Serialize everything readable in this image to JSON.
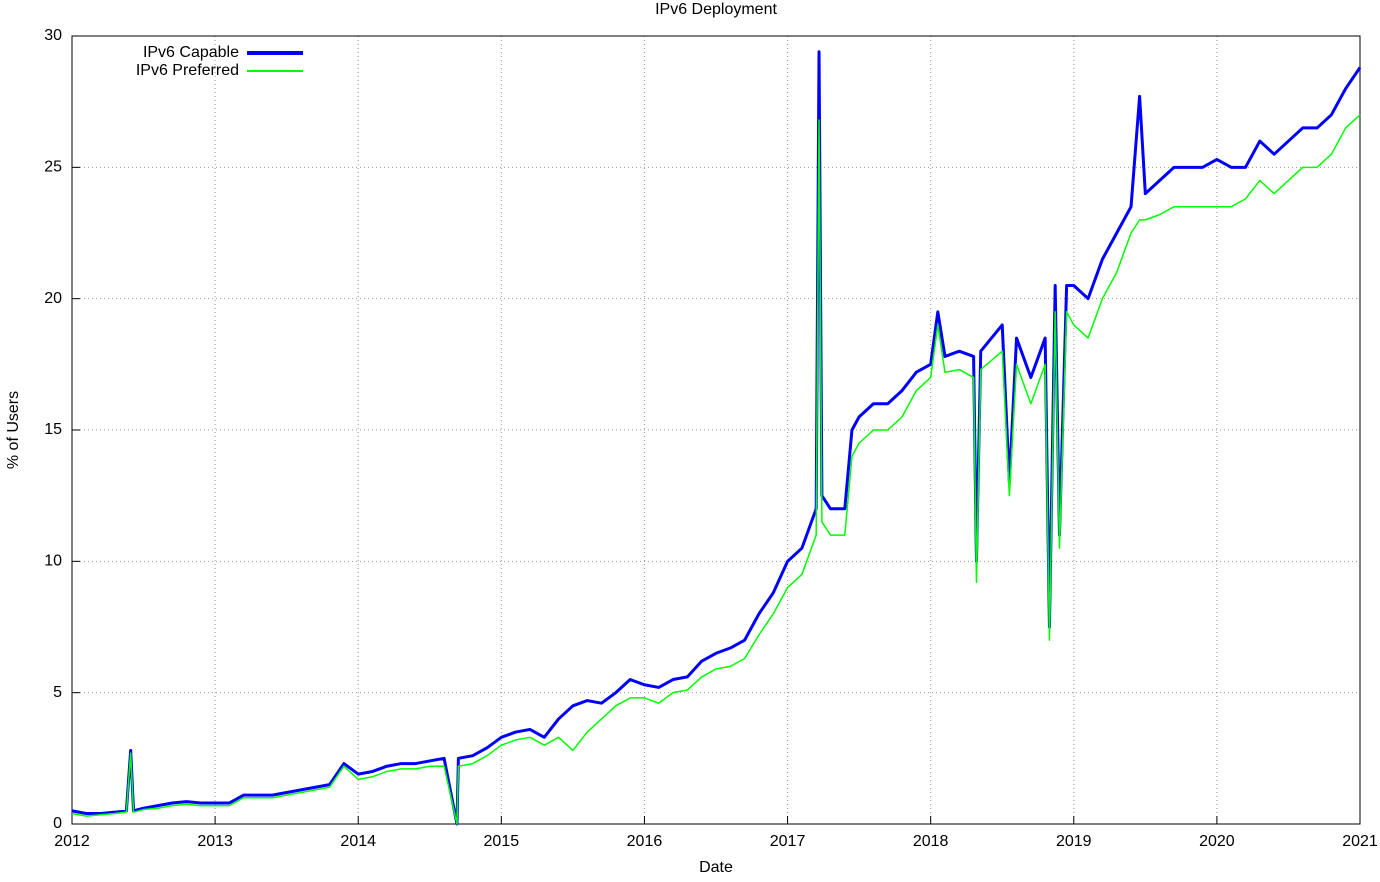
{
  "chart_data": {
    "type": "line",
    "title": "IPv6 Deployment",
    "x_label": "Date",
    "y_label": "% of Users",
    "x": [
      2012.0,
      2012.1,
      2012.2,
      2012.3,
      2012.38,
      2012.41,
      2012.43,
      2012.5,
      2012.6,
      2012.7,
      2012.8,
      2012.9,
      2013.0,
      2013.1,
      2013.2,
      2013.3,
      2013.4,
      2013.5,
      2013.6,
      2013.7,
      2013.8,
      2013.9,
      2014.0,
      2014.1,
      2014.2,
      2014.3,
      2014.4,
      2014.5,
      2014.6,
      2014.69,
      2014.7,
      2014.8,
      2014.9,
      2015.0,
      2015.1,
      2015.2,
      2015.3,
      2015.4,
      2015.5,
      2015.6,
      2015.7,
      2015.8,
      2015.9,
      2016.0,
      2016.1,
      2016.2,
      2016.3,
      2016.4,
      2016.5,
      2016.6,
      2016.7,
      2016.8,
      2016.9,
      2017.0,
      2017.1,
      2017.2,
      2017.22,
      2017.24,
      2017.3,
      2017.4,
      2017.45,
      2017.5,
      2017.6,
      2017.7,
      2017.8,
      2017.9,
      2018.0,
      2018.05,
      2018.1,
      2018.2,
      2018.3,
      2018.32,
      2018.35,
      2018.5,
      2018.55,
      2018.6,
      2018.7,
      2018.8,
      2018.83,
      2018.87,
      2018.9,
      2018.95,
      2019.0,
      2019.1,
      2019.2,
      2019.3,
      2019.4,
      2019.46,
      2019.5,
      2019.6,
      2019.7,
      2019.8,
      2019.9,
      2020.0,
      2020.1,
      2020.2,
      2020.3,
      2020.4,
      2020.5,
      2020.6,
      2020.7,
      2020.8,
      2020.9,
      2021.0
    ],
    "series": [
      {
        "name": "IPv6 Capable",
        "color": "#0000ff",
        "values": [
          0.5,
          0.4,
          0.4,
          0.45,
          0.5,
          2.8,
          0.5,
          0.6,
          0.7,
          0.8,
          0.85,
          0.8,
          0.8,
          0.8,
          1.1,
          1.1,
          1.1,
          1.2,
          1.3,
          1.4,
          1.5,
          2.3,
          1.9,
          2.0,
          2.2,
          2.3,
          2.3,
          2.4,
          2.5,
          0,
          2.5,
          2.6,
          2.9,
          3.3,
          3.5,
          3.6,
          3.3,
          4.0,
          4.5,
          4.7,
          4.6,
          5.0,
          5.5,
          5.3,
          5.2,
          5.5,
          5.6,
          6.2,
          6.5,
          6.7,
          7.0,
          8.0,
          8.8,
          10.0,
          10.5,
          12.0,
          29.4,
          12.5,
          12.0,
          12.0,
          15.0,
          15.5,
          16.0,
          16.0,
          16.5,
          17.2,
          17.5,
          19.5,
          17.8,
          18.0,
          17.8,
          10.0,
          18.0,
          19.0,
          13.0,
          18.5,
          17.0,
          18.5,
          7.5,
          20.5,
          11.0,
          20.5,
          20.5,
          20.0,
          21.5,
          22.5,
          23.5,
          27.7,
          24.0,
          24.5,
          25.0,
          25.0,
          25.0,
          25.3,
          25.0,
          25.0,
          26.0,
          25.5,
          26.0,
          26.5,
          26.5,
          27.0,
          28.0,
          28.8
        ]
      },
      {
        "name": "IPv6 Preferred",
        "color": "#00ff00",
        "values": [
          0.4,
          0.3,
          0.35,
          0.4,
          0.45,
          2.7,
          0.45,
          0.55,
          0.6,
          0.7,
          0.75,
          0.7,
          0.7,
          0.7,
          1.0,
          1.0,
          1.0,
          1.1,
          1.2,
          1.3,
          1.4,
          2.2,
          1.7,
          1.8,
          2.0,
          2.1,
          2.1,
          2.2,
          2.2,
          0,
          2.2,
          2.3,
          2.6,
          3.0,
          3.2,
          3.3,
          3.0,
          3.3,
          2.8,
          3.5,
          4.0,
          4.5,
          4.8,
          4.8,
          4.6,
          5.0,
          5.1,
          5.6,
          5.9,
          6.0,
          6.3,
          7.2,
          8.0,
          9.0,
          9.5,
          11.0,
          26.8,
          11.5,
          11.0,
          11.0,
          14.0,
          14.5,
          15.0,
          15.0,
          15.5,
          16.5,
          17.0,
          19.0,
          17.2,
          17.3,
          17.0,
          9.2,
          17.3,
          18.0,
          12.5,
          17.5,
          16.0,
          17.5,
          7.0,
          19.5,
          10.5,
          19.5,
          19.0,
          18.5,
          20.0,
          21.0,
          22.5,
          23.0,
          23.0,
          23.2,
          23.5,
          23.5,
          23.5,
          23.5,
          23.5,
          23.8,
          24.5,
          24.0,
          24.5,
          25.0,
          25.0,
          25.5,
          26.5,
          27.0
        ]
      }
    ],
    "xlim": [
      2012,
      2021
    ],
    "xticks": [
      2012,
      2013,
      2014,
      2015,
      2016,
      2017,
      2018,
      2019,
      2020,
      2021
    ],
    "ylim": [
      0,
      30
    ],
    "yticks": [
      0,
      5,
      10,
      15,
      20,
      25,
      30
    ],
    "grid": true,
    "legend": "top-left"
  }
}
